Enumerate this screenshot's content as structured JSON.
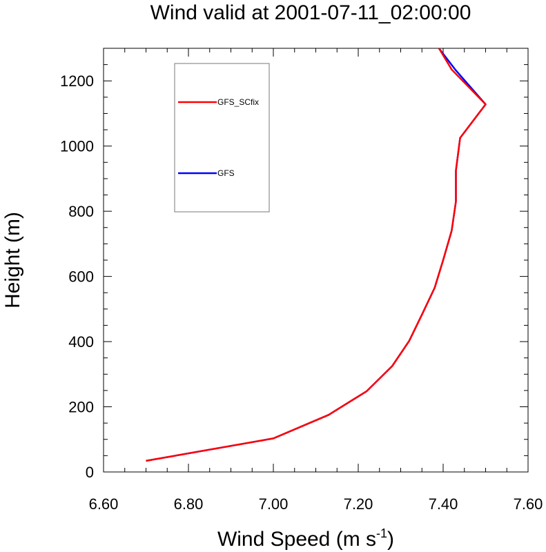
{
  "chart_data": {
    "type": "line",
    "title": "Wind valid at 2001-07-11_02:00:00",
    "xlabel": "Wind Speed (m s",
    "xlabel_sup": "-1",
    "xlabel_end": ")",
    "ylabel": "Height (m)",
    "xlim": [
      6.6,
      7.6
    ],
    "ylim": [
      0,
      1300
    ],
    "xticks": [
      "6.60",
      "6.80",
      "7.00",
      "7.20",
      "7.40",
      "7.60"
    ],
    "yticks": [
      "0",
      "200",
      "400",
      "600",
      "800",
      "1000",
      "1200"
    ],
    "series": [
      {
        "name": "GFS",
        "color": "#0000ff",
        "points": [
          [
            6.7,
            34
          ],
          [
            7.0,
            103
          ],
          [
            7.13,
            175
          ],
          [
            7.22,
            248
          ],
          [
            7.28,
            325
          ],
          [
            7.32,
            402
          ],
          [
            7.35,
            483
          ],
          [
            7.38,
            565
          ],
          [
            7.4,
            650
          ],
          [
            7.42,
            740
          ],
          [
            7.43,
            830
          ],
          [
            7.43,
            925
          ],
          [
            7.44,
            1025
          ],
          [
            7.5,
            1128
          ],
          [
            7.43,
            1232
          ],
          [
            7.39,
            1300
          ]
        ]
      },
      {
        "name": "GFS_SCfix",
        "color": "#ff0000",
        "points": [
          [
            6.7,
            34
          ],
          [
            7.0,
            103
          ],
          [
            7.13,
            175
          ],
          [
            7.22,
            248
          ],
          [
            7.28,
            325
          ],
          [
            7.32,
            402
          ],
          [
            7.35,
            483
          ],
          [
            7.38,
            565
          ],
          [
            7.4,
            650
          ],
          [
            7.42,
            740
          ],
          [
            7.43,
            830
          ],
          [
            7.43,
            925
          ],
          [
            7.44,
            1025
          ],
          [
            7.5,
            1128
          ],
          [
            7.42,
            1235
          ],
          [
            7.39,
            1300
          ]
        ]
      }
    ],
    "legend": {
      "placement": "top-left",
      "entries": [
        {
          "label": "GFS_SCfix",
          "color": "#ff0000"
        },
        {
          "label": "GFS",
          "color": "#0000ff"
        }
      ]
    },
    "grid": false
  }
}
